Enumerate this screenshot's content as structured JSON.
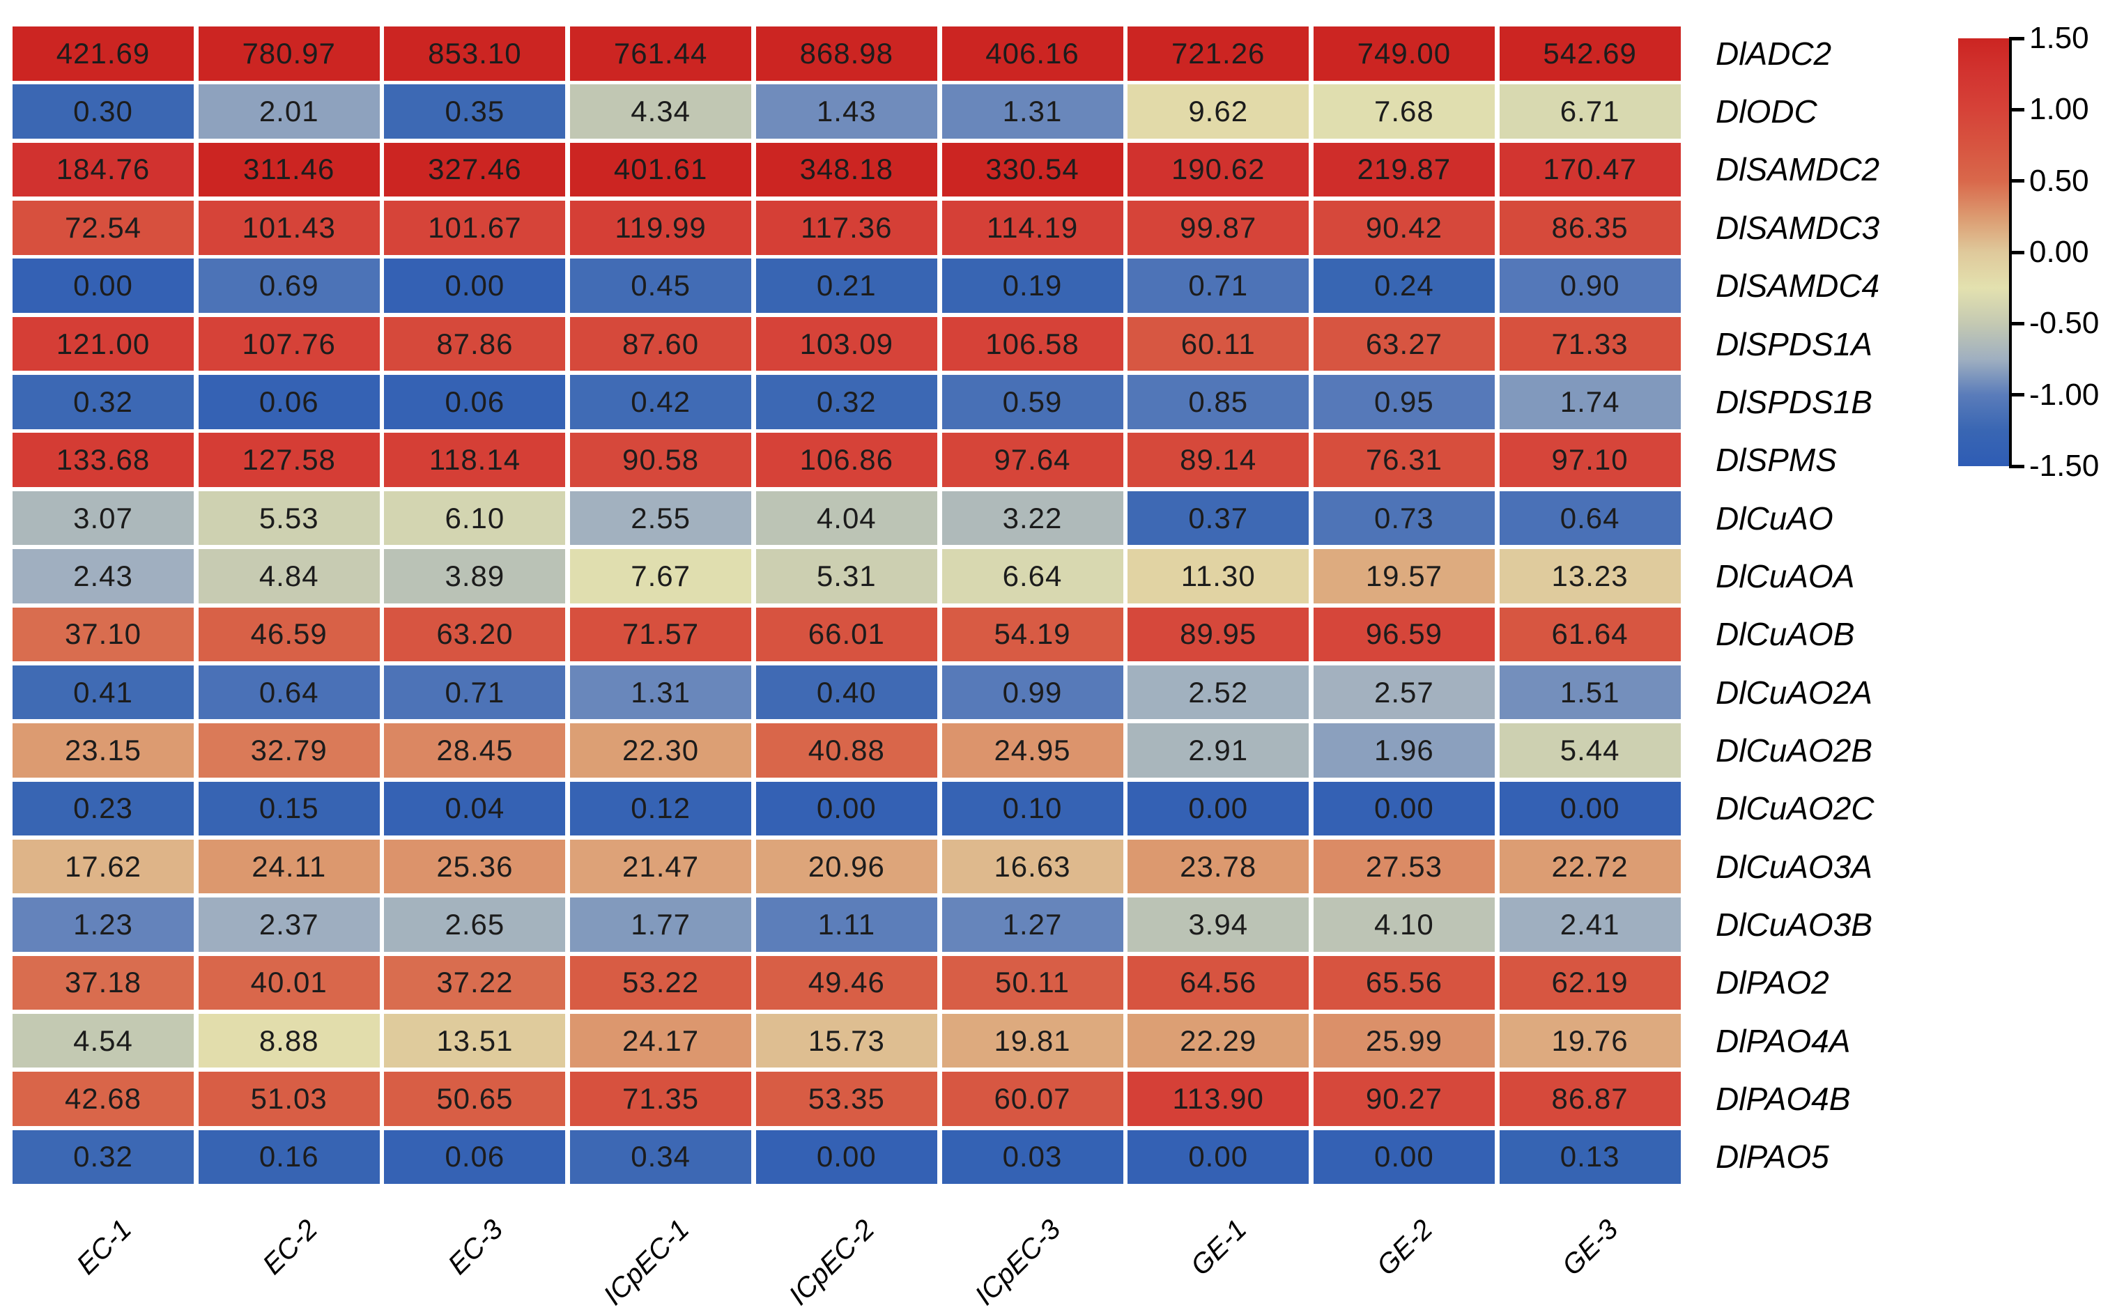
{
  "chart_data": {
    "type": "heatmap",
    "title": "",
    "xlabel": "",
    "ylabel": "",
    "legend_position": "right",
    "grid": "white gaps between cells",
    "columns": [
      "EC-1",
      "EC-2",
      "EC-3",
      "ICpEC-1",
      "ICpEC-2",
      "ICpEC-3",
      "GE-1",
      "GE-2",
      "GE-3"
    ],
    "rows": [
      "DlADC2",
      "DlODC",
      "DlSAMDC2",
      "DlSAMDC3",
      "DlSAMDC4",
      "DlSPDS1A",
      "DlSPDS1B",
      "DlSPMS",
      "DlCuAO",
      "DlCuAOA",
      "DlCuAOB",
      "DlCuAO2A",
      "DlCuAO2B",
      "DlCuAO2C",
      "DlCuAO3A",
      "DlCuAO3B",
      "DlPAO2",
      "DlPAO4A",
      "DlPAO4B",
      "DlPAO5"
    ],
    "values": [
      [
        421.69,
        780.97,
        853.1,
        761.44,
        868.98,
        406.16,
        721.26,
        749.0,
        542.69
      ],
      [
        0.3,
        2.01,
        0.35,
        4.34,
        1.43,
        1.31,
        9.62,
        7.68,
        6.71
      ],
      [
        184.76,
        311.46,
        327.46,
        401.61,
        348.18,
        330.54,
        190.62,
        219.87,
        170.47
      ],
      [
        72.54,
        101.43,
        101.67,
        119.99,
        117.36,
        114.19,
        99.87,
        90.42,
        86.35
      ],
      [
        0.0,
        0.69,
        0.0,
        0.45,
        0.21,
        0.19,
        0.71,
        0.24,
        0.9
      ],
      [
        121.0,
        107.76,
        87.86,
        87.6,
        103.09,
        106.58,
        60.11,
        63.27,
        71.33
      ],
      [
        0.32,
        0.06,
        0.06,
        0.42,
        0.32,
        0.59,
        0.85,
        0.95,
        1.74
      ],
      [
        133.68,
        127.58,
        118.14,
        90.58,
        106.86,
        97.64,
        89.14,
        76.31,
        97.1
      ],
      [
        3.07,
        5.53,
        6.1,
        2.55,
        4.04,
        3.22,
        0.37,
        0.73,
        0.64
      ],
      [
        2.43,
        4.84,
        3.89,
        7.67,
        5.31,
        6.64,
        11.3,
        19.57,
        13.23
      ],
      [
        37.1,
        46.59,
        63.2,
        71.57,
        66.01,
        54.19,
        89.95,
        96.59,
        61.64
      ],
      [
        0.41,
        0.64,
        0.71,
        1.31,
        0.4,
        0.99,
        2.52,
        2.57,
        1.51
      ],
      [
        23.15,
        32.79,
        28.45,
        22.3,
        40.88,
        24.95,
        2.91,
        1.96,
        5.44
      ],
      [
        0.23,
        0.15,
        0.04,
        0.12,
        0.0,
        0.1,
        0.0,
        0.0,
        0.0
      ],
      [
        17.62,
        24.11,
        25.36,
        21.47,
        20.96,
        16.63,
        23.78,
        27.53,
        22.72
      ],
      [
        1.23,
        2.37,
        2.65,
        1.77,
        1.11,
        1.27,
        3.94,
        4.1,
        2.41
      ],
      [
        37.18,
        40.01,
        37.22,
        53.22,
        49.46,
        50.11,
        64.56,
        65.56,
        62.19
      ],
      [
        4.54,
        8.88,
        13.51,
        24.17,
        15.73,
        19.81,
        22.29,
        25.99,
        19.76
      ],
      [
        42.68,
        51.03,
        50.65,
        71.35,
        53.35,
        60.07,
        113.9,
        90.27,
        86.87
      ],
      [
        0.32,
        0.16,
        0.06,
        0.34,
        0.0,
        0.03,
        0.0,
        0.0,
        0.13
      ]
    ],
    "value_decimals": 2,
    "color_scale": {
      "normalization": "z-score of log2(value+1) over all cells, clamped to [-1.5, 1.5]",
      "min": -1.5,
      "max": 1.5,
      "tick_labels": [
        "1.50",
        "1.00",
        "0.50",
        "0.00",
        "-0.50",
        "-1.00",
        "-1.50"
      ],
      "tick_values": [
        1.5,
        1.0,
        0.5,
        0.0,
        -0.5,
        -1.0,
        -1.5
      ],
      "stops": [
        {
          "t": 1.5,
          "color": "#CC2522"
        },
        {
          "t": 1.25,
          "color": "#D23430"
        },
        {
          "t": 1.0,
          "color": "#D64238"
        },
        {
          "t": 0.75,
          "color": "#D75440"
        },
        {
          "t": 0.5,
          "color": "#D9684B"
        },
        {
          "t": 0.25,
          "color": "#DC9A70"
        },
        {
          "t": 0.0,
          "color": "#DFC99B"
        },
        {
          "t": -0.25,
          "color": "#E3E1AF"
        },
        {
          "t": -0.5,
          "color": "#C4C9B2"
        },
        {
          "t": -0.75,
          "color": "#9FAFC0"
        },
        {
          "t": -1.0,
          "color": "#5A7CBA"
        },
        {
          "t": -1.25,
          "color": "#3966B3"
        },
        {
          "t": -1.5,
          "color": "#2E5CB5"
        }
      ]
    }
  }
}
